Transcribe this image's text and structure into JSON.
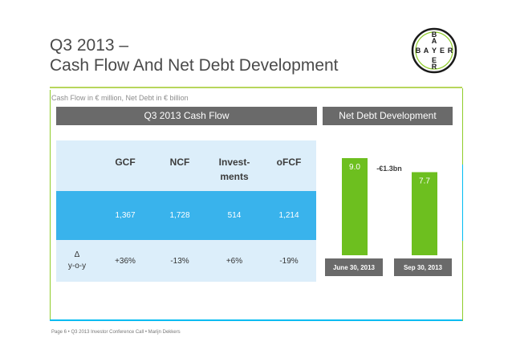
{
  "slide": {
    "title_line1": "Q3 2013 –",
    "title_line2": "Cash Flow And Net Debt Development",
    "subtitle": "Cash Flow in € million, Net Debt in € billion",
    "footer": "Page 6 • Q3 2013 Investor Conference Call • Marijn Dekkers"
  },
  "logo": {
    "text": "BAYER",
    "color": "#1a1a1a"
  },
  "colors": {
    "accent_green": "#8fcc2a",
    "accent_blue": "#00bcf2",
    "bar_green": "#6dbf1f",
    "header_gray": "#6a6a6a",
    "table_light": "#dceefa",
    "table_blue": "#39b3ec"
  },
  "headers": {
    "cash_flow": "Q3 2013 Cash Flow",
    "net_debt": "Net Debt Development"
  },
  "chart_data": [
    {
      "type": "table",
      "title": "Q3 2013 Cash Flow",
      "columns": [
        "GCF",
        "NCF",
        "Invest-\nments",
        "oFCF"
      ],
      "rows": [
        {
          "label": "",
          "values": [
            "1,367",
            "1,728",
            "514",
            "1,214"
          ]
        },
        {
          "label": "Δ\ny-o-y",
          "values": [
            "+36%",
            "-13%",
            "+6%",
            "-19%"
          ]
        }
      ]
    },
    {
      "type": "bar",
      "title": "Net Debt Development",
      "categories": [
        "June 30, 2013",
        "Sep 30, 2013"
      ],
      "values": [
        9.0,
        7.7
      ],
      "value_labels": [
        "9.0",
        "7.7"
      ],
      "annotation": "-€1.3bn",
      "ylim": [
        0,
        9.0
      ],
      "grid": false
    }
  ]
}
